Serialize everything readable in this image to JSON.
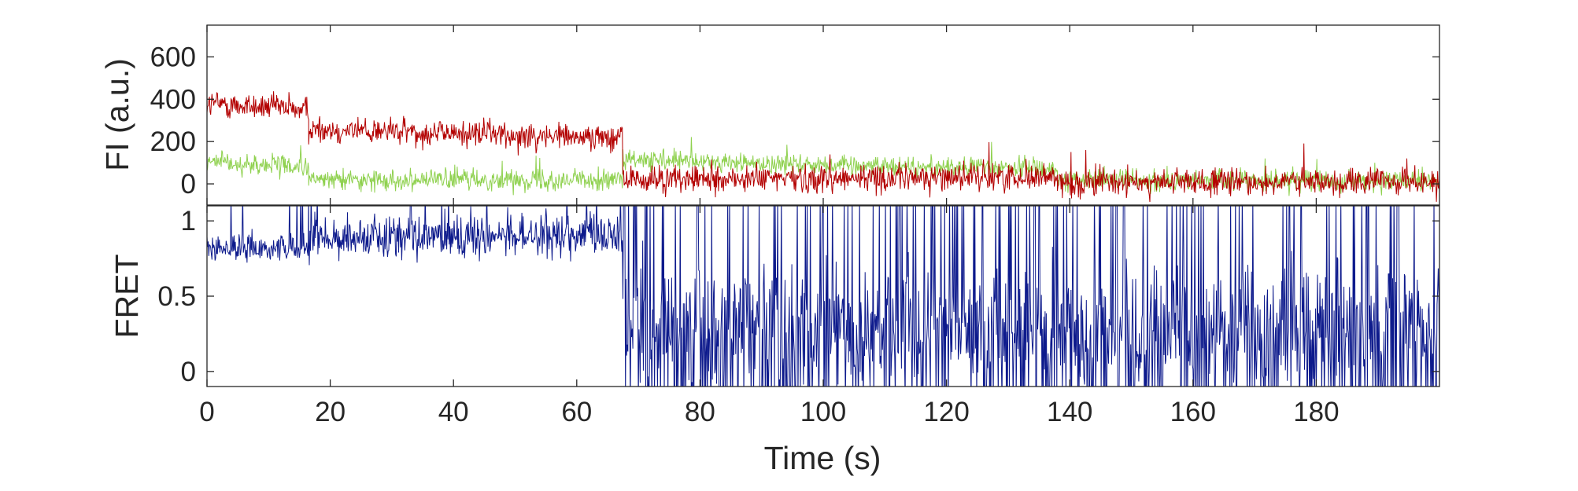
{
  "chart_data": [
    {
      "type": "line",
      "panel": "top",
      "title": "",
      "xlabel": "",
      "ylabel": "FI (a.u.)",
      "xlim": [
        0,
        200
      ],
      "ylim": [
        -100,
        750
      ],
      "x_ticks": [
        0,
        20,
        40,
        60,
        80,
        100,
        120,
        140,
        160,
        180
      ],
      "y_ticks": [
        0,
        200,
        400,
        600
      ],
      "y_tick_labels": [
        "0",
        "200",
        "400",
        "600"
      ],
      "grid": false,
      "legend": "none",
      "sample_interval_s": 0.1,
      "series": [
        {
          "color": "#b30000",
          "noise": 60,
          "segments": [
            {
              "x": [
                0,
                16.5
              ],
              "y": [
                380,
                350
              ]
            },
            {
              "x": [
                16.5,
                40
              ],
              "y": [
                260,
                240
              ]
            },
            {
              "x": [
                40,
                67.5
              ],
              "y": [
                240,
                220
              ]
            },
            {
              "x": [
                67.5,
                138
              ],
              "y": [
                20,
                35
              ]
            },
            {
              "x": [
                138,
                200
              ],
              "y": [
                5,
                10
              ]
            }
          ]
        },
        {
          "color": "#8fd14f",
          "noise": 45,
          "segments": [
            {
              "x": [
                0,
                16.5
              ],
              "y": [
                100,
                80
              ]
            },
            {
              "x": [
                16.5,
                67.5
              ],
              "y": [
                20,
                20
              ]
            },
            {
              "x": [
                67.5,
                138
              ],
              "y": [
                110,
                70
              ]
            },
            {
              "x": [
                138,
                200
              ],
              "y": [
                20,
                10
              ]
            }
          ]
        }
      ]
    },
    {
      "type": "line",
      "panel": "bottom",
      "title": "",
      "xlabel": "Time (s)",
      "ylabel": "FRET",
      "xlim": [
        0,
        200
      ],
      "ylim": [
        -0.1,
        1.1
      ],
      "x_ticks": [
        0,
        20,
        40,
        60,
        80,
        100,
        120,
        140,
        160,
        180
      ],
      "x_tick_labels": [
        "0",
        "20",
        "40",
        "60",
        "80",
        "100",
        "120",
        "140",
        "160",
        "180"
      ],
      "y_ticks": [
        0,
        0.5,
        1
      ],
      "y_tick_labels": [
        "0",
        "0.5",
        "1"
      ],
      "grid": false,
      "legend": "none",
      "series": [
        {
          "color": "#0d1a8c",
          "segments": [
            {
              "x": [
                0,
                16.5
              ],
              "mean": 0.82,
              "noise": 0.08,
              "mode": "gauss"
            },
            {
              "x": [
                16.5,
                67.5
              ],
              "mean": 0.9,
              "noise": 0.12,
              "mode": "gauss"
            },
            {
              "x": [
                67.5,
                200
              ],
              "mean": 0.3,
              "noise": 0.35,
              "mode": "wild"
            }
          ]
        }
      ]
    }
  ]
}
